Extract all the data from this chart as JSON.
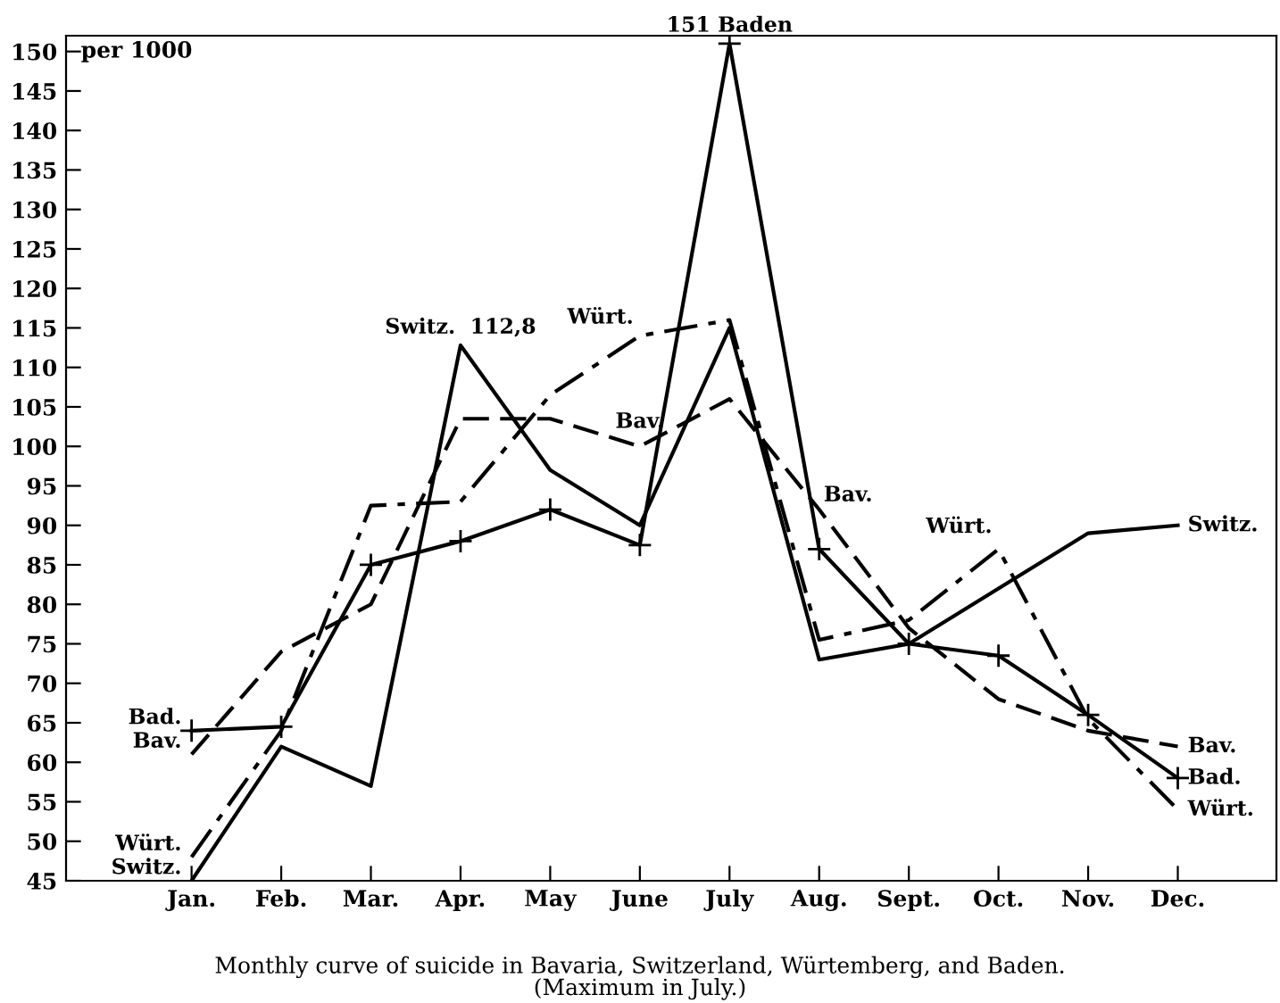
{
  "chart_data": {
    "type": "line",
    "title": "Monthly curve of suicide in Bavaria, Switzerland, Würtemberg, and Baden.\n(Maximum in July.)",
    "ylabel": "per 1000",
    "categories": [
      "Jan.",
      "Feb.",
      "Mar.",
      "Apr.",
      "May",
      "June",
      "July",
      "Aug.",
      "Sept.",
      "Oct.",
      "Nov.",
      "Dec."
    ],
    "series": [
      {
        "name": "Bav.",
        "color": "#000000",
        "line_style": "dashed",
        "values": [
          61,
          74,
          80,
          103.5,
          103.5,
          100,
          106,
          92,
          77,
          68,
          64,
          62
        ]
      },
      {
        "name": "Switz.",
        "color": "#000000",
        "line_style": "solid",
        "values": [
          45,
          62,
          57,
          112.8,
          97,
          90,
          115,
          73,
          75,
          82,
          89,
          90
        ]
      },
      {
        "name": "Würt.",
        "color": "#000000",
        "line_style": "dashdot",
        "values": [
          48,
          64,
          92.5,
          93,
          106.5,
          114,
          116,
          75.5,
          78,
          87,
          65.5,
          54
        ]
      },
      {
        "name": "Bad.",
        "color": "#000000",
        "line_style": "solid",
        "marker": "cross",
        "values": [
          64,
          64.5,
          85,
          88,
          92,
          87.5,
          151,
          87,
          75,
          73.5,
          66,
          58
        ]
      }
    ],
    "annotations": [
      {
        "text": "151 Baden",
        "x": "July",
        "y": 151
      },
      {
        "text": "Switz.  112,8",
        "x": "Apr.",
        "y": 112.8
      },
      "Würt.",
      "Bav.",
      "Bav.",
      "Würt."
    ],
    "ylim": [
      45,
      152
    ],
    "yticks": [
      45,
      50,
      55,
      60,
      65,
      70,
      75,
      80,
      85,
      90,
      95,
      100,
      105,
      110,
      115,
      120,
      125,
      130,
      135,
      140,
      145,
      150
    ],
    "grid": false,
    "legend": false
  }
}
